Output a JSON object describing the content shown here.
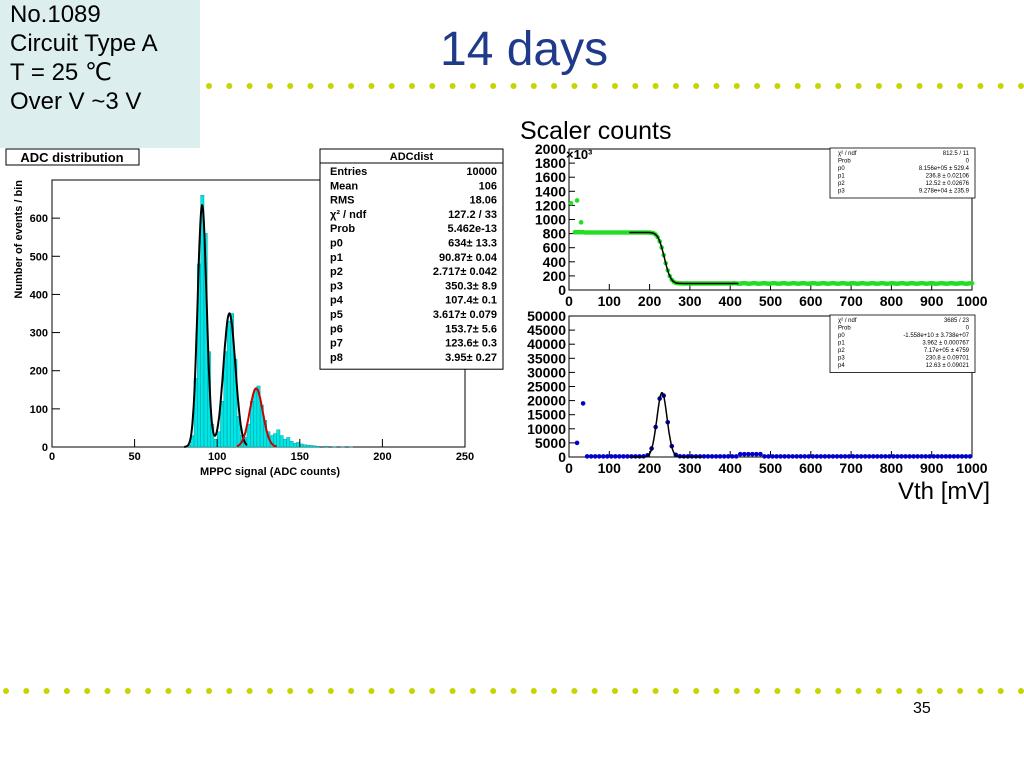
{
  "slide": {
    "title": "14 days",
    "info_lines": [
      "No.1089",
      "Circuit Type A",
      "T = 25 ℃",
      "Over V ~3 V"
    ],
    "page_number": "35",
    "scaler_title": "Scaler counts",
    "vth_label": "Vth [mV]",
    "dot_color": "#c6d400",
    "title_color": "#1f3a8a",
    "info_bg": "#dcefee"
  },
  "chart_data": [
    {
      "type": "bar",
      "title": "ADC distribution",
      "xlabel": "MPPC signal (ADC counts)",
      "ylabel": "Number of events / bin",
      "xlim": [
        0,
        250
      ],
      "ylim": [
        0,
        700
      ],
      "xticks": [
        0,
        50,
        100,
        150,
        200,
        250
      ],
      "yticks": [
        0,
        100,
        200,
        300,
        400,
        500,
        600
      ],
      "fill_color": "#00e5e5",
      "fit_color": "#000000",
      "tail_fit_color": "#cc0000",
      "stats": {
        "title": "ADCdist",
        "rows": [
          {
            "label": "Entries",
            "value": "10000"
          },
          {
            "label": "Mean",
            "value": "106"
          },
          {
            "label": "RMS",
            "value": "18.06"
          },
          {
            "label": "χ² / ndf",
            "value": "127.2 / 33"
          },
          {
            "label": "Prob",
            "value": "5.462e-13"
          },
          {
            "label": "p0",
            "value": "634± 13.3"
          },
          {
            "label": "p1",
            "value": "90.87± 0.04"
          },
          {
            "label": "p2",
            "value": "2.717± 0.042"
          },
          {
            "label": "p3",
            "value": "350.3± 8.9"
          },
          {
            "label": "p4",
            "value": "107.4± 0.1"
          },
          {
            "label": "p5",
            "value": "3.617± 0.079"
          },
          {
            "label": "p6",
            "value": "153.7± 5.6"
          },
          {
            "label": "p7",
            "value": "123.6± 0.3"
          },
          {
            "label": "p8",
            "value": "3.95± 0.27"
          }
        ]
      },
      "x": [
        82,
        84,
        86,
        88,
        90,
        92,
        94,
        96,
        98,
        100,
        102,
        104,
        106,
        108,
        110,
        112,
        114,
        116,
        118,
        120,
        122,
        124,
        126,
        128,
        130,
        132,
        134,
        136,
        138,
        140,
        142,
        144,
        146,
        148,
        150,
        152,
        154,
        156,
        158,
        160,
        165,
        170,
        175,
        180,
        185
      ],
      "values": [
        5,
        30,
        180,
        480,
        660,
        560,
        250,
        60,
        20,
        40,
        120,
        250,
        330,
        350,
        230,
        80,
        30,
        25,
        60,
        120,
        150,
        160,
        110,
        70,
        40,
        30,
        35,
        45,
        30,
        20,
        25,
        15,
        10,
        12,
        8,
        6,
        5,
        4,
        3,
        2,
        2,
        1,
        1,
        1,
        0
      ]
    },
    {
      "type": "scatter",
      "xlim": [
        0,
        1000
      ],
      "ylim": [
        0,
        2000
      ],
      "y_multiplier": "×10³",
      "xticks": [
        0,
        100,
        200,
        300,
        400,
        500,
        600,
        700,
        800,
        900,
        1000
      ],
      "yticks": [
        0,
        200,
        400,
        600,
        800,
        1000,
        1200,
        1400,
        1600,
        1800,
        2000
      ],
      "point_color": "#22dd22",
      "fit_color": "#000000",
      "stats": {
        "rows": [
          {
            "label": "χ² / ndf",
            "value": "812.5 / 11"
          },
          {
            "label": "Prob",
            "value": "0"
          },
          {
            "label": "p0",
            "value": "8.156e+05 ± 529.4"
          },
          {
            "label": "p1",
            "value": "236.8 ± 0.02106"
          },
          {
            "label": "p2",
            "value": "12.52 ± 0.02676"
          },
          {
            "label": "p3",
            "value": "9.278e+04 ± 235.9"
          }
        ]
      },
      "fit": {
        "p0": 815.6,
        "p1": 236.8,
        "p2": 12.52,
        "p3": 92.78
      }
    },
    {
      "type": "scatter",
      "xlim": [
        0,
        1000
      ],
      "ylim": [
        0,
        50000
      ],
      "xticks": [
        0,
        100,
        200,
        300,
        400,
        500,
        600,
        700,
        800,
        900,
        1000
      ],
      "yticks": [
        0,
        5000,
        10000,
        15000,
        20000,
        25000,
        30000,
        35000,
        40000,
        45000,
        50000
      ],
      "point_color": "#0000cc",
      "fit_color": "#000000",
      "stats": {
        "rows": [
          {
            "label": "χ² / ndf",
            "value": "3685 / 23"
          },
          {
            "label": "Prob",
            "value": "0"
          },
          {
            "label": "p0",
            "value": "-1.558e+10 ± 3.738e+07"
          },
          {
            "label": "p1",
            "value": "3.962 ± 0.000767"
          },
          {
            "label": "p2",
            "value": "7.17e+05 ± 4759"
          },
          {
            "label": "p3",
            "value": "230.8 ± 0.09701"
          },
          {
            "label": "p4",
            "value": "12.63 ± 0.09021"
          }
        ]
      },
      "fit": {
        "amp": 22800,
        "mean": 230.8,
        "sigma": 12.63
      }
    }
  ]
}
